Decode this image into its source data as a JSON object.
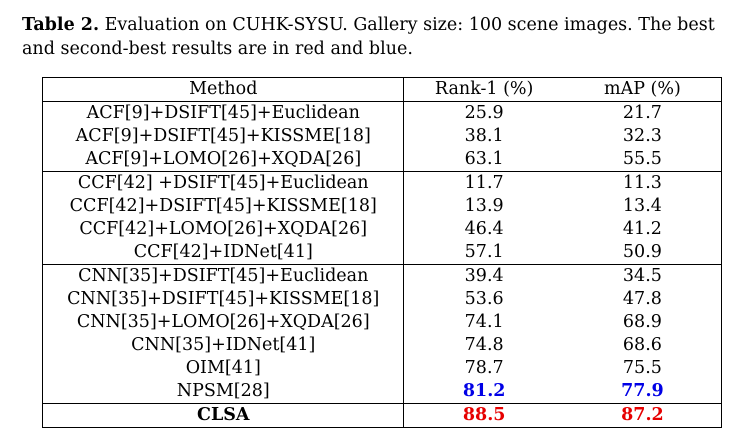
{
  "caption": {
    "label": "Table 2.",
    "text": " Evaluation on CUHK-SYSU. Gallery size: 100 scene images. The best and second-best results are in red and blue."
  },
  "table": {
    "headers": [
      "Method",
      "Rank-1 (%)",
      "mAP (%)"
    ],
    "groups": [
      [
        {
          "method": "ACF[9]+DSIFT[45]+Euclidean",
          "rank1": "25.9",
          "map": "21.7"
        },
        {
          "method": "ACF[9]+DSIFT[45]+KISSME[18]",
          "rank1": "38.1",
          "map": "32.3"
        },
        {
          "method": "ACF[9]+LOMO[26]+XQDA[26]",
          "rank1": "63.1",
          "map": "55.5"
        }
      ],
      [
        {
          "method": "CCF[42] +DSIFT[45]+Euclidean",
          "rank1": "11.7",
          "map": "11.3"
        },
        {
          "method": "CCF[42]+DSIFT[45]+KISSME[18]",
          "rank1": "13.9",
          "map": "13.4"
        },
        {
          "method": "CCF[42]+LOMO[26]+XQDA[26]",
          "rank1": "46.4",
          "map": "41.2"
        },
        {
          "method": "CCF[42]+IDNet[41]",
          "rank1": "57.1",
          "map": "50.9"
        }
      ],
      [
        {
          "method": "CNN[35]+DSIFT[45]+Euclidean",
          "rank1": "39.4",
          "map": "34.5"
        },
        {
          "method": "CNN[35]+DSIFT[45]+KISSME[18]",
          "rank1": "53.6",
          "map": "47.8"
        },
        {
          "method": "CNN[35]+LOMO[26]+XQDA[26]",
          "rank1": "74.1",
          "map": "68.9"
        },
        {
          "method": "CNN[35]+IDNet[41]",
          "rank1": "74.8",
          "map": "68.6"
        },
        {
          "method": "OIM[41]",
          "rank1": "78.7",
          "map": "75.5"
        },
        {
          "method": "NPSM[28]",
          "rank1": "81.2",
          "map": "77.9"
        }
      ],
      [
        {
          "method": "CLSA",
          "rank1": "88.5",
          "map": "87.2"
        }
      ]
    ]
  },
  "colors": {
    "best": "#e60000",
    "second_best": "#0000e6"
  }
}
